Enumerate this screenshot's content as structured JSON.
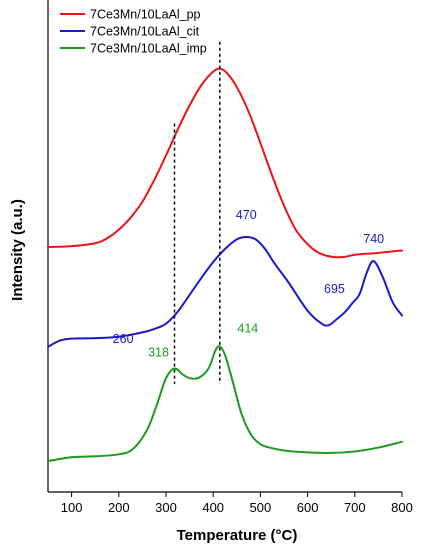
{
  "chart_data": {
    "type": "line",
    "xlabel": "Temperature (°C)",
    "ylabel": "Intensity (a.u.)",
    "xlim": [
      50,
      800
    ],
    "xticks": [
      100,
      200,
      300,
      400,
      500,
      600,
      700,
      800
    ],
    "ylim": [
      0,
      1
    ],
    "grid": false,
    "legend_position": "top-left",
    "series": [
      {
        "name": "7Ce3Mn/10LaAl_pp",
        "color": "#e8141a",
        "x": [
          50,
          100,
          150,
          175,
          200,
          225,
          250,
          275,
          300,
          325,
          350,
          375,
          400,
          415,
          430,
          450,
          475,
          500,
          525,
          550,
          575,
          600,
          620,
          640,
          660,
          680,
          700,
          720,
          740,
          760,
          780,
          800
        ],
        "y": [
          0.504,
          0.506,
          0.512,
          0.522,
          0.54,
          0.565,
          0.598,
          0.643,
          0.694,
          0.748,
          0.798,
          0.84,
          0.868,
          0.874,
          0.864,
          0.836,
          0.785,
          0.72,
          0.652,
          0.59,
          0.54,
          0.51,
          0.494,
          0.486,
          0.483,
          0.484,
          0.488,
          0.49,
          0.491,
          0.493,
          0.495,
          0.497
        ]
      },
      {
        "name": "7Ce3Mn/10LaAl_cit",
        "color": "#1a1acc",
        "x": [
          50,
          75,
          100,
          150,
          200,
          250,
          275,
          300,
          325,
          350,
          375,
          400,
          425,
          450,
          470,
          490,
          510,
          530,
          560,
          600,
          630,
          645,
          660,
          680,
          695,
          710,
          725,
          740,
          760,
          780,
          800
        ],
        "y": [
          0.297,
          0.31,
          0.314,
          0.315,
          0.318,
          0.327,
          0.334,
          0.345,
          0.37,
          0.405,
          0.44,
          0.473,
          0.5,
          0.52,
          0.525,
          0.52,
          0.5,
          0.47,
          0.43,
          0.372,
          0.345,
          0.342,
          0.353,
          0.37,
          0.388,
          0.406,
          0.45,
          0.475,
          0.44,
          0.39,
          0.362
        ]
      },
      {
        "name": "7Ce3Mn/10LaAl_imp",
        "color": "#1f9a1f",
        "x": [
          50,
          100,
          150,
          200,
          230,
          260,
          280,
          300,
          318,
          335,
          350,
          370,
          390,
          405,
          414,
          425,
          440,
          460,
          480,
          500,
          520,
          550,
          600,
          650,
          700,
          750,
          800
        ],
        "y": [
          0.06,
          0.068,
          0.07,
          0.074,
          0.085,
          0.125,
          0.175,
          0.232,
          0.252,
          0.24,
          0.232,
          0.233,
          0.252,
          0.29,
          0.298,
          0.28,
          0.23,
          0.158,
          0.115,
          0.095,
          0.088,
          0.082,
          0.078,
          0.077,
          0.08,
          0.088,
          0.1
        ]
      }
    ],
    "annotations": [
      {
        "text": "260",
        "x": 260,
        "series": "7Ce3Mn/10LaAl_cit",
        "color": "#1a1acc"
      },
      {
        "text": "470",
        "x": 470,
        "series": "7Ce3Mn/10LaAl_cit",
        "color": "#1a1acc"
      },
      {
        "text": "695",
        "x": 695,
        "series": "7Ce3Mn/10LaAl_cit",
        "color": "#1a1acc"
      },
      {
        "text": "740",
        "x": 740,
        "series": "7Ce3Mn/10LaAl_cit",
        "color": "#1a1acc"
      },
      {
        "text": "318",
        "x": 318,
        "series": "7Ce3Mn/10LaAl_imp",
        "color": "#1f9a1f"
      },
      {
        "text": "414",
        "x": 414,
        "series": "7Ce3Mn/10LaAl_imp",
        "color": "#1f9a1f"
      }
    ],
    "reference_lines_x": [
      318,
      414
    ]
  }
}
